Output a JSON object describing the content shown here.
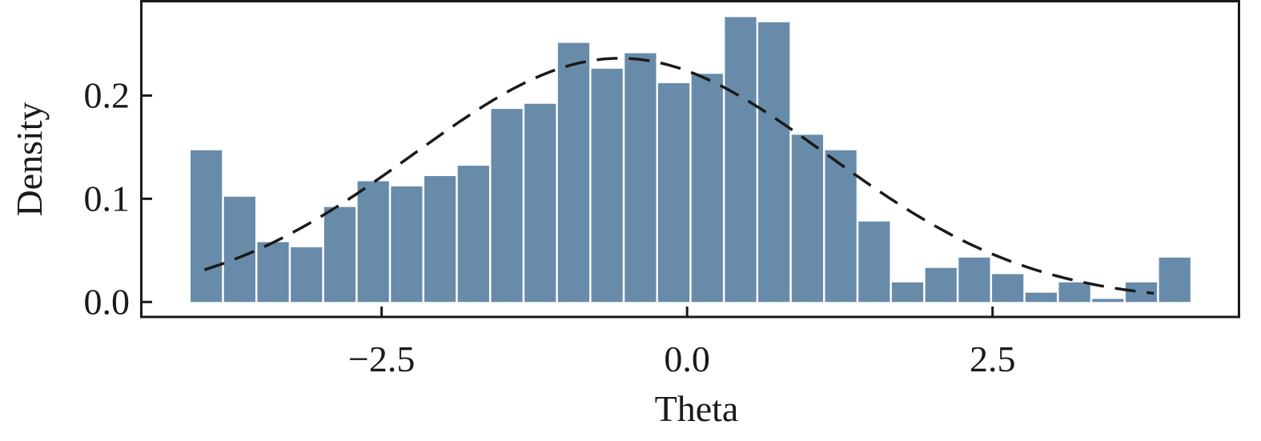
{
  "chart_data": {
    "type": "bar",
    "title": "",
    "xlabel": "Theta",
    "ylabel": "Density",
    "xlim": [
      -4.47,
      4.52
    ],
    "ylim": [
      -0.0145,
      0.291
    ],
    "xticks": [
      {
        "value": -2.5,
        "label": "−2.5"
      },
      {
        "value": 0.0,
        "label": "0.0"
      },
      {
        "value": 2.5,
        "label": "2.5"
      }
    ],
    "yticks": [
      {
        "value": 0.0,
        "label": "0.0"
      },
      {
        "value": 0.1,
        "label": "0.1"
      },
      {
        "value": 0.2,
        "label": "0.2"
      }
    ],
    "bin_start": -4.07,
    "bin_width": 0.2733,
    "values": [
      0.147,
      0.102,
      0.058,
      0.053,
      0.092,
      0.117,
      0.112,
      0.122,
      0.132,
      0.187,
      0.192,
      0.251,
      0.226,
      0.241,
      0.212,
      0.221,
      0.276,
      0.271,
      0.162,
      0.147,
      0.078,
      0.019,
      0.033,
      0.043,
      0.027,
      0.009,
      0.019,
      0.003,
      0.019,
      0.043
    ],
    "fit_curve": {
      "type": "normal",
      "mean": -0.55,
      "sd": 1.69,
      "x_range": [
        -3.95,
        3.82
      ],
      "style": "dashed"
    },
    "bar_color": "#688ba9",
    "curve_color": "#1a1a1a",
    "grid": false
  }
}
